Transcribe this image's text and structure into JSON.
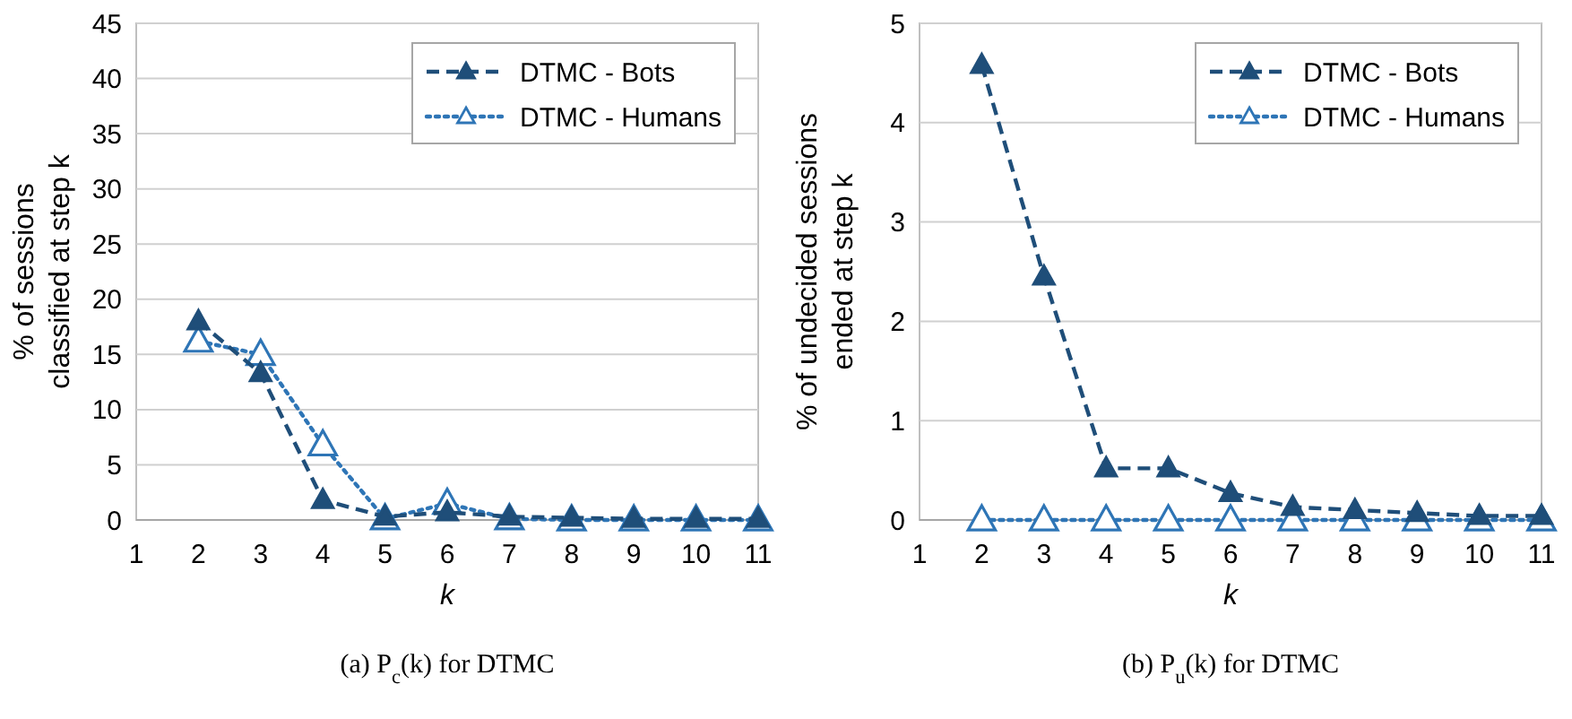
{
  "chart_data": [
    {
      "type": "line",
      "xlabel": "k",
      "ylabel": "% of sessions classified at step k",
      "annotations": [
        "(a) P$_{c}$(k) for DTMC"
      ],
      "xlim": [
        1,
        11
      ],
      "xticks": [
        1,
        2,
        3,
        4,
        5,
        6,
        7,
        8,
        9,
        10,
        11
      ],
      "ylim": [
        0,
        45
      ],
      "yticks": [
        0,
        5,
        10,
        15,
        20,
        25,
        30,
        35,
        40,
        45
      ],
      "grid": "y",
      "legend": "top right",
      "x": [
        2,
        3,
        4,
        5,
        6,
        7,
        8,
        9,
        10,
        11
      ],
      "series": [
        {
          "name": "DTMC - Bots",
          "color": "#1f4e79",
          "marker": "triangle",
          "line_style": "dashed",
          "values": [
            18,
            13.3,
            1.8,
            0.3,
            0.7,
            0.3,
            0.2,
            0.1,
            0.1,
            0.1
          ]
        },
        {
          "name": "DTMC - Humans",
          "color": "#2e75b6",
          "marker": "triangle",
          "line_style": "dotted",
          "values": [
            16.2,
            15,
            6.8,
            0.1,
            1.5,
            0.1,
            0,
            0,
            0,
            0
          ]
        }
      ]
    },
    {
      "type": "line",
      "xlabel": "k",
      "ylabel": "% of undecided sessions ended at step k",
      "annotations": [
        "(b) P$_{u}$(k) for DTMC"
      ],
      "xlim": [
        1,
        11
      ],
      "xticks": [
        1,
        2,
        3,
        4,
        5,
        6,
        7,
        8,
        9,
        10,
        11
      ],
      "ylim": [
        0,
        5
      ],
      "yticks": [
        0,
        1,
        2,
        3,
        4,
        5
      ],
      "grid": "y",
      "legend": "top right",
      "x": [
        2,
        3,
        4,
        5,
        6,
        7,
        8,
        9,
        10,
        11
      ],
      "series": [
        {
          "name": "DTMC - Bots",
          "color": "#1f4e79",
          "marker": "triangle",
          "line_style": "dashed",
          "values": [
            4.58,
            2.45,
            0.52,
            0.52,
            0.27,
            0.13,
            0.1,
            0.07,
            0.04,
            0.04
          ]
        },
        {
          "name": "DTMC - Humans",
          "color": "#2e75b6",
          "marker": "triangle",
          "line_style": "dotted",
          "values": [
            0,
            0,
            0,
            0,
            0,
            0,
            0,
            0,
            0,
            0
          ]
        }
      ]
    }
  ]
}
